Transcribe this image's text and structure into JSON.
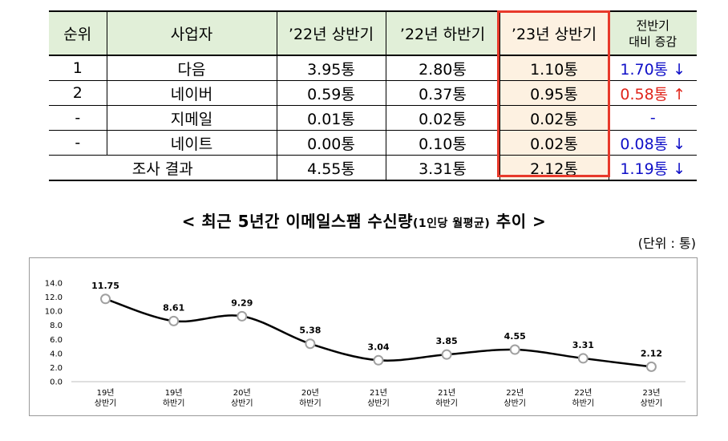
{
  "table": {
    "headers": [
      "순위",
      "사업자",
      "’22년 상반기",
      "’22년 하반기",
      "’23년 상반기"
    ],
    "last_header": [
      "전반기",
      "대비 증감"
    ],
    "rows": [
      {
        "rank": "1",
        "name": "다음",
        "h22a": "3.95통",
        "h22b": "2.80통",
        "h23a": "1.10통",
        "change": "1.70통 ↓",
        "dir": "down"
      },
      {
        "rank": "2",
        "name": "네이버",
        "h22a": "0.59통",
        "h22b": "0.37통",
        "h23a": "0.95통",
        "change": "0.58통 ↑",
        "dir": "up"
      },
      {
        "rank": "-",
        "name": "지메일",
        "h22a": "0.01통",
        "h22b": "0.02통",
        "h23a": "0.02통",
        "change": "-",
        "dir": "flat"
      },
      {
        "rank": "-",
        "name": "네이트",
        "h22a": "0.00통",
        "h22b": "0.10통",
        "h23a": "0.02통",
        "change": "0.08통 ↓",
        "dir": "down"
      }
    ],
    "total": {
      "label": "조사 결과",
      "h22a": "4.55통",
      "h22b": "3.31통",
      "h23a": "2.12통",
      "change": "1.19통 ↓",
      "dir": "down"
    },
    "colors": {
      "header_bg": "#e1efd8",
      "highlight_bg": "#fdf1e1",
      "highlight_border": "#e8392b",
      "down": "#1010c8",
      "up": "#e0251b"
    }
  },
  "chart_title": {
    "main_before": "< 최근 5년간 이메일스팸 수신량",
    "sub": "(1인당 월평균)",
    "main_after": " 추이 >"
  },
  "unit": "(단위 : 통)",
  "chart_data": {
    "type": "line",
    "categories": [
      [
        "19년",
        "상반기"
      ],
      [
        "19년",
        "하반기"
      ],
      [
        "20년",
        "상반기"
      ],
      [
        "20년",
        "하반기"
      ],
      [
        "21년",
        "상반기"
      ],
      [
        "21년",
        "하반기"
      ],
      [
        "22년",
        "상반기"
      ],
      [
        "22년",
        "하반기"
      ],
      [
        "23년",
        "상반기"
      ]
    ],
    "series": [
      {
        "values": [
          11.75,
          8.61,
          9.29,
          5.38,
          3.04,
          3.85,
          4.55,
          3.31,
          2.12
        ]
      }
    ],
    "data_labels": [
      "11.75",
      "8.61",
      "9.29",
      "5.38",
      "3.04",
      "3.85",
      "4.55",
      "3.31",
      "2.12"
    ],
    "y_ticks": [
      "0.0",
      "2.0",
      "4.0",
      "6.0",
      "8.0",
      "10.0",
      "12.0",
      "14.0"
    ],
    "ylim": [
      0,
      14
    ],
    "grid": false,
    "line_color": "#000000",
    "marker_fill": "#ffffff",
    "marker_stroke": "#a0a0a0"
  }
}
